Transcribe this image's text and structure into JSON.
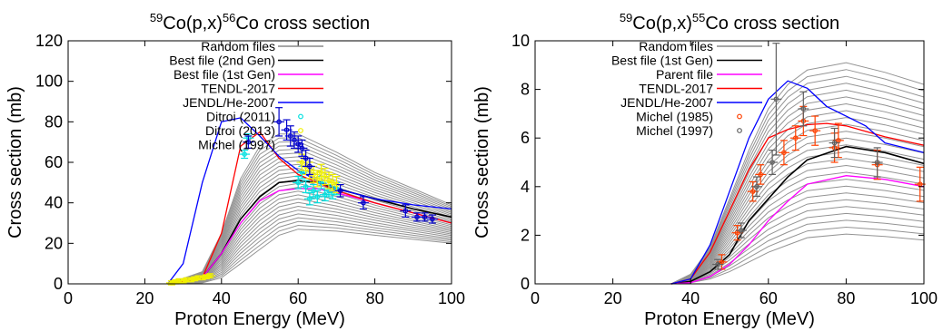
{
  "chart_data": [
    {
      "type": "line",
      "title_parts": {
        "sup1": "59",
        "mid": "Co(p,x)",
        "sup2": "56",
        "end": "Co cross section"
      },
      "xlabel": "Proton Energy (MeV)",
      "ylabel": "Cross section (mb)",
      "xlim": [
        0,
        100
      ],
      "ylim": [
        0,
        120
      ],
      "xticks": [
        0,
        20,
        40,
        60,
        80,
        100
      ],
      "yticks": [
        0,
        20,
        40,
        60,
        80,
        100,
        120
      ],
      "legend_position": "top-right",
      "random_files": {
        "name": "Random files",
        "color": "#888888",
        "x": [
          26,
          35,
          40,
          45,
          50,
          55,
          60,
          70,
          80,
          90,
          100
        ],
        "low": [
          0,
          0.5,
          3,
          10,
          17,
          24,
          27,
          26,
          24,
          22,
          20
        ],
        "high": [
          0,
          6,
          25,
          52,
          68,
          74,
          74,
          65,
          55,
          47,
          39
        ]
      },
      "series": [
        {
          "name": "Best file (2nd Gen)",
          "color": "#000000",
          "x": [
            26,
            35,
            40,
            45,
            50,
            55,
            60,
            65,
            70,
            80,
            90,
            100
          ],
          "y": [
            0,
            3,
            15,
            32,
            43,
            50,
            51,
            50,
            47,
            42,
            37,
            33
          ]
        },
        {
          "name": "Best file (1st Gen)",
          "color": "#ff00ff",
          "x": [
            26,
            35,
            40,
            45,
            50,
            55,
            60,
            65,
            70,
            80,
            90,
            100
          ],
          "y": [
            0,
            3,
            15,
            30,
            41,
            46,
            47,
            47,
            45,
            40,
            35,
            30
          ]
        },
        {
          "name": "TENDL-2017",
          "color": "#ff0000",
          "x": [
            26,
            35,
            40,
            45,
            50,
            55,
            60,
            65,
            70,
            80,
            90,
            100
          ],
          "y": [
            0,
            3,
            25,
            68,
            75,
            62,
            54,
            50,
            46,
            40,
            35,
            30
          ]
        },
        {
          "name": "JENDL/He-2007",
          "color": "#0000ff",
          "x": [
            26,
            30,
            35,
            40,
            45,
            50,
            55,
            60,
            65,
            70,
            80,
            90,
            100
          ],
          "y": [
            0,
            10,
            50,
            80,
            82,
            73,
            63,
            56,
            51,
            47,
            42,
            39,
            37
          ]
        }
      ],
      "experimental": [
        {
          "name": "Ditroi (2011)",
          "color": "#00e0e0",
          "points": [
            [
              46,
              64,
              2
            ],
            [
              47,
              72,
              2
            ],
            [
              60,
              50,
              3
            ],
            [
              62,
              48,
              3
            ],
            [
              64,
              46,
              3
            ],
            [
              66,
              50,
              3
            ],
            [
              68,
              46,
              3
            ],
            [
              61,
              55,
              3
            ],
            [
              63,
              42,
              3
            ],
            [
              65,
              43,
              3
            ],
            [
              67,
              44,
              3
            ],
            [
              69,
              45,
              3
            ],
            [
              70,
              47,
              3
            ]
          ]
        },
        {
          "name": "Ditroi (2013)",
          "color": "#f0f000",
          "points": [
            [
              27,
              0.5,
              1
            ],
            [
              28,
              1,
              1
            ],
            [
              29,
              1.5,
              1
            ],
            [
              30,
              1.5,
              1
            ],
            [
              31,
              2,
              1
            ],
            [
              32,
              2,
              1
            ],
            [
              33,
              2.5,
              1
            ],
            [
              34,
              3,
              1
            ],
            [
              35,
              3,
              1
            ],
            [
              36,
              3.5,
              1
            ],
            [
              37,
              4,
              1
            ],
            [
              61,
              60,
              4
            ],
            [
              62,
              58,
              4
            ],
            [
              63,
              56,
              4
            ],
            [
              64,
              54,
              4
            ],
            [
              65,
              52,
              4
            ],
            [
              66,
              55,
              4
            ],
            [
              67,
              53,
              4
            ],
            [
              68,
              51,
              4
            ],
            [
              69,
              50,
              4
            ],
            [
              70,
              49,
              4
            ]
          ]
        },
        {
          "name": "Michel (1997)",
          "color": "#0000cc",
          "points": [
            [
              47,
              70,
              3
            ],
            [
              55,
              80,
              7
            ],
            [
              57,
              76,
              5
            ],
            [
              58,
              73,
              5
            ],
            [
              59,
              71,
              4
            ],
            [
              60,
              69,
              4
            ],
            [
              61,
              67,
              4
            ],
            [
              62,
              62,
              4
            ],
            [
              63,
              58,
              4
            ],
            [
              71,
              46,
              3
            ],
            [
              77,
              40,
              3
            ],
            [
              88,
              36,
              3
            ],
            [
              91,
              33,
              2
            ],
            [
              93,
              33,
              2
            ],
            [
              95,
              32,
              2
            ]
          ]
        }
      ]
    },
    {
      "type": "line",
      "title_parts": {
        "sup1": "59",
        "mid": "Co(p,x)",
        "sup2": "55",
        "end": "Co cross section"
      },
      "xlabel": "Proton Energy (MeV)",
      "ylabel": "Cross section (mb)",
      "xlim": [
        0,
        100
      ],
      "ylim": [
        0,
        10
      ],
      "xticks": [
        0,
        20,
        40,
        60,
        80,
        100
      ],
      "yticks": [
        0,
        2,
        4,
        6,
        8,
        10
      ],
      "legend_position": "top-left",
      "random_files": {
        "name": "Random files",
        "color": "#888888",
        "x": [
          35,
          40,
          45,
          50,
          55,
          60,
          65,
          70,
          80,
          90,
          100
        ],
        "low": [
          0,
          0.05,
          0.2,
          0.5,
          0.9,
          1.3,
          1.6,
          1.9,
          2.05,
          1.95,
          1.8
        ],
        "high": [
          0,
          0.4,
          1.5,
          3.5,
          5.5,
          7.2,
          8.2,
          8.8,
          9.1,
          8.7,
          8.2
        ]
      },
      "series": [
        {
          "name": "Best file (1st Gen)",
          "color": "#000000",
          "x": [
            35,
            40,
            45,
            50,
            55,
            60,
            65,
            70,
            80,
            90,
            100
          ],
          "y": [
            0,
            0.1,
            0.5,
            1.2,
            2.6,
            3.5,
            4.4,
            5.1,
            5.65,
            5.4,
            4.95
          ]
        },
        {
          "name": "Parent file",
          "color": "#ff00ff",
          "x": [
            35,
            40,
            45,
            50,
            55,
            60,
            65,
            70,
            80,
            90,
            100
          ],
          "y": [
            0,
            0.05,
            0.3,
            0.8,
            1.6,
            2.6,
            3.4,
            4.1,
            4.45,
            4.3,
            4.0
          ]
        },
        {
          "name": "TENDL-2017",
          "color": "#ff0000",
          "x": [
            35,
            40,
            45,
            50,
            55,
            60,
            65,
            70,
            75,
            80,
            90,
            100
          ],
          "y": [
            0,
            0.2,
            1.3,
            3.0,
            4.7,
            6.0,
            6.35,
            6.55,
            6.6,
            6.5,
            6.05,
            5.7
          ]
        },
        {
          "name": "JENDL/He-2007",
          "color": "#0000ff",
          "x": [
            35,
            40,
            45,
            50,
            55,
            60,
            65,
            70,
            75,
            80,
            85,
            90,
            100
          ],
          "y": [
            0,
            0.2,
            1.6,
            3.8,
            6.0,
            7.6,
            8.35,
            8.05,
            7.3,
            6.9,
            6.5,
            5.8,
            5.4
          ]
        }
      ],
      "experimental": [
        {
          "name": "Michel (1985)",
          "color": "#ff4000",
          "points": [
            [
              48,
              0.9,
              0.3
            ],
            [
              52,
              2.1,
              0.3
            ],
            [
              56,
              3.8,
              0.4
            ],
            [
              58,
              4.5,
              0.4
            ],
            [
              64,
              5.4,
              0.5
            ],
            [
              67,
              6.0,
              0.5
            ],
            [
              69,
              6.7,
              0.6
            ],
            [
              72,
              6.3,
              0.6
            ],
            [
              77,
              5.6,
              0.6
            ],
            [
              78,
              5.9,
              0.7
            ],
            [
              88,
              4.9,
              0.6
            ],
            [
              99,
              4.1,
              0.7
            ]
          ]
        },
        {
          "name": "Michel (1997)",
          "color": "#606060",
          "points": [
            [
              47,
              0.8,
              0.2
            ],
            [
              53,
              2.2,
              0.3
            ],
            [
              57,
              4.0,
              0.4
            ],
            [
              61,
              5.0,
              0.5
            ],
            [
              62,
              7.6,
              2.3
            ],
            [
              69,
              7.2,
              0.7
            ],
            [
              77,
              5.8,
              0.6
            ],
            [
              88,
              5.0,
              0.6
            ]
          ]
        }
      ]
    }
  ]
}
